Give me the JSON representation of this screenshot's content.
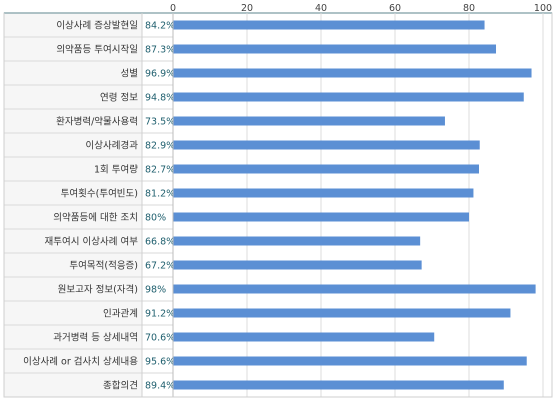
{
  "chart_data": {
    "type": "bar",
    "orientation": "horizontal",
    "categories": [
      "이상사례 증상발현일",
      "의약품등 투여시작일",
      "성별",
      "연령 정보",
      "환자병력/약물사용력",
      "이상사례경과",
      "1회 투여량",
      "투여횟수(투여빈도)",
      "의약품등에 대한 조치",
      "재투여시 이상사례 여부",
      "투여목적(적응증)",
      "원보고자 정보(자격)",
      "인과관계",
      "과거병력 등 상세내역",
      "이상사례 or 검사치 상세내용",
      "종합의견"
    ],
    "values": [
      84.2,
      87.3,
      96.9,
      94.8,
      73.5,
      82.9,
      82.7,
      81.2,
      80,
      66.8,
      67.2,
      98,
      91.2,
      70.6,
      95.6,
      89.4
    ],
    "value_labels": [
      "84.2%",
      "87.3%",
      "96.9%",
      "94.8%",
      "73.5%",
      "82.9%",
      "82.7%",
      "81.2%",
      "80%",
      "66.8%",
      "67.2%",
      "98%",
      "91.2%",
      "70.6%",
      "95.6%",
      "89.4%"
    ],
    "xlim": [
      0,
      100
    ],
    "xticks": [
      0,
      20,
      40,
      60,
      80,
      100
    ],
    "grid": true,
    "bar_color": "#5b8fd4"
  }
}
